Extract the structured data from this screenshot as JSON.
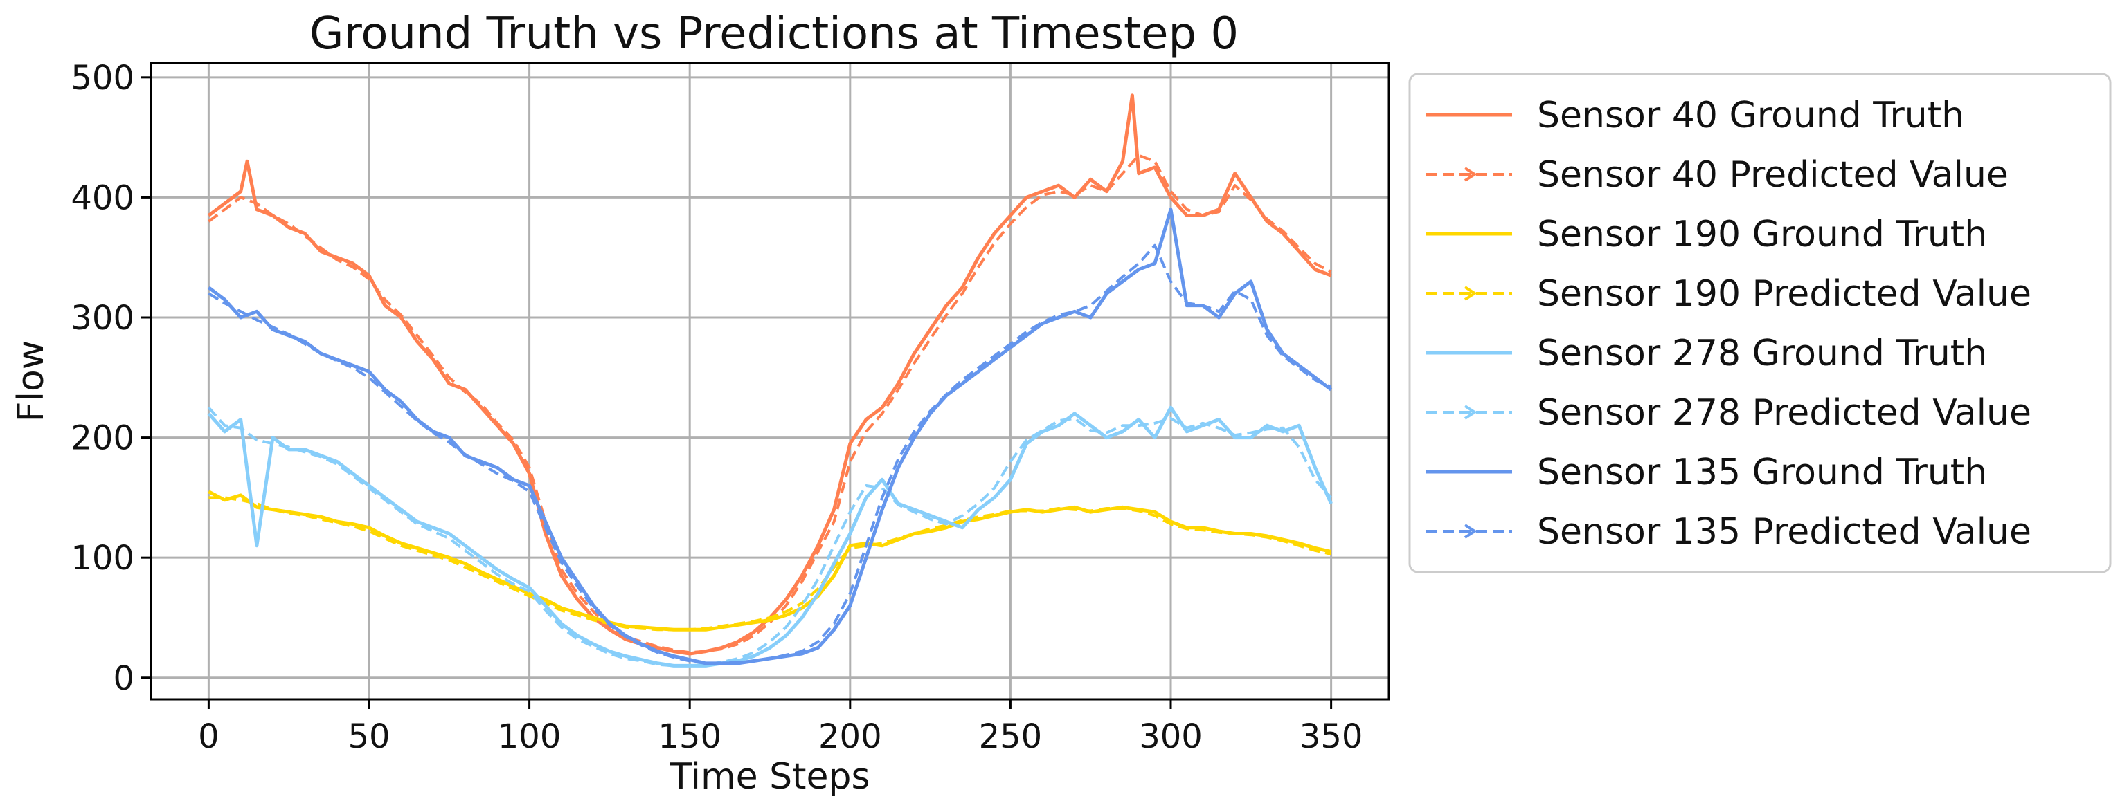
{
  "chart_data": {
    "type": "line",
    "title": "Ground Truth vs Predictions at Timestep 0",
    "xlabel": "Time Steps",
    "ylabel": "Flow",
    "xlim": [
      -18,
      368
    ],
    "ylim": [
      -18,
      512
    ],
    "xticks": [
      0,
      50,
      100,
      150,
      200,
      250,
      300,
      350
    ],
    "yticks": [
      0,
      100,
      200,
      300,
      400,
      500
    ],
    "grid": true,
    "legend_position": "outside-right",
    "series": [
      {
        "name": "Sensor 40 Ground Truth",
        "color": "#FF7F50",
        "style": "solid",
        "x": [
          0,
          5,
          10,
          12,
          15,
          20,
          25,
          30,
          35,
          40,
          45,
          50,
          55,
          60,
          65,
          70,
          75,
          80,
          85,
          90,
          95,
          100,
          105,
          110,
          115,
          120,
          125,
          130,
          135,
          140,
          145,
          150,
          155,
          160,
          165,
          170,
          175,
          180,
          185,
          190,
          195,
          200,
          205,
          210,
          215,
          220,
          225,
          230,
          235,
          240,
          245,
          250,
          255,
          260,
          265,
          270,
          275,
          280,
          285,
          288,
          290,
          295,
          300,
          305,
          310,
          315,
          320,
          325,
          330,
          335,
          340,
          345,
          350
        ],
        "y": [
          385,
          395,
          405,
          430,
          390,
          385,
          375,
          370,
          355,
          350,
          345,
          335,
          310,
          300,
          280,
          265,
          245,
          240,
          225,
          210,
          195,
          170,
          120,
          85,
          65,
          50,
          40,
          32,
          28,
          25,
          22,
          20,
          22,
          25,
          30,
          38,
          50,
          65,
          85,
          110,
          140,
          195,
          215,
          225,
          245,
          270,
          290,
          310,
          325,
          350,
          370,
          385,
          400,
          405,
          410,
          400,
          415,
          405,
          430,
          485,
          420,
          425,
          400,
          385,
          385,
          390,
          420,
          400,
          380,
          370,
          355,
          340,
          335
        ]
      },
      {
        "name": "Sensor 40 Predicted Value",
        "color": "#FF7F50",
        "style": "dashed",
        "x": [
          0,
          5,
          10,
          15,
          20,
          25,
          30,
          35,
          40,
          45,
          50,
          55,
          60,
          65,
          70,
          75,
          80,
          85,
          90,
          95,
          100,
          105,
          110,
          115,
          120,
          125,
          130,
          135,
          140,
          145,
          150,
          155,
          160,
          165,
          170,
          175,
          180,
          185,
          190,
          195,
          200,
          205,
          210,
          215,
          220,
          225,
          230,
          235,
          240,
          245,
          250,
          255,
          260,
          265,
          270,
          275,
          280,
          285,
          290,
          295,
          300,
          305,
          310,
          315,
          320,
          325,
          330,
          335,
          340,
          345,
          350
        ],
        "y": [
          380,
          390,
          400,
          395,
          385,
          378,
          368,
          358,
          348,
          342,
          332,
          315,
          302,
          285,
          268,
          250,
          238,
          228,
          212,
          198,
          175,
          130,
          90,
          70,
          55,
          42,
          34,
          30,
          26,
          23,
          21,
          22,
          24,
          28,
          35,
          46,
          60,
          80,
          105,
          130,
          180,
          205,
          220,
          240,
          262,
          282,
          302,
          320,
          342,
          362,
          378,
          392,
          402,
          405,
          402,
          410,
          405,
          420,
          435,
          430,
          405,
          390,
          385,
          388,
          410,
          398,
          382,
          372,
          358,
          345,
          338
        ]
      },
      {
        "name": "Sensor 190 Ground Truth",
        "color": "#FFD700",
        "style": "solid",
        "x": [
          0,
          5,
          10,
          15,
          20,
          25,
          30,
          35,
          40,
          45,
          50,
          55,
          60,
          65,
          70,
          75,
          80,
          85,
          90,
          95,
          100,
          105,
          110,
          115,
          120,
          125,
          130,
          135,
          140,
          145,
          150,
          155,
          160,
          165,
          170,
          175,
          180,
          185,
          190,
          195,
          200,
          205,
          210,
          215,
          220,
          225,
          230,
          235,
          240,
          245,
          250,
          255,
          260,
          265,
          270,
          275,
          280,
          285,
          290,
          295,
          300,
          305,
          310,
          315,
          320,
          325,
          330,
          335,
          340,
          345,
          350
        ],
        "y": [
          155,
          148,
          152,
          142,
          140,
          138,
          136,
          134,
          130,
          128,
          125,
          118,
          112,
          108,
          104,
          100,
          95,
          88,
          82,
          76,
          70,
          65,
          58,
          54,
          50,
          46,
          43,
          42,
          41,
          40,
          40,
          40,
          42,
          44,
          46,
          48,
          52,
          58,
          68,
          85,
          110,
          112,
          110,
          115,
          120,
          122,
          125,
          130,
          132,
          135,
          138,
          140,
          138,
          140,
          142,
          138,
          140,
          142,
          140,
          138,
          130,
          125,
          125,
          122,
          120,
          120,
          118,
          115,
          112,
          108,
          105
        ]
      },
      {
        "name": "Sensor 190 Predicted Value",
        "color": "#FFD700",
        "style": "dashed",
        "x": [
          0,
          5,
          10,
          15,
          20,
          25,
          30,
          35,
          40,
          45,
          50,
          55,
          60,
          65,
          70,
          75,
          80,
          85,
          90,
          95,
          100,
          105,
          110,
          115,
          120,
          125,
          130,
          135,
          140,
          145,
          150,
          155,
          160,
          165,
          170,
          175,
          180,
          185,
          190,
          195,
          200,
          205,
          210,
          215,
          220,
          225,
          230,
          235,
          240,
          245,
          250,
          255,
          260,
          265,
          270,
          275,
          280,
          285,
          290,
          295,
          300,
          305,
          310,
          315,
          320,
          325,
          330,
          335,
          340,
          345,
          350
        ],
        "y": [
          150,
          150,
          148,
          145,
          140,
          137,
          135,
          132,
          129,
          126,
          122,
          116,
          110,
          106,
          102,
          98,
          92,
          86,
          80,
          74,
          68,
          62,
          56,
          52,
          48,
          45,
          42,
          41,
          40,
          40,
          40,
          41,
          43,
          45,
          47,
          50,
          55,
          62,
          74,
          92,
          108,
          110,
          112,
          116,
          120,
          124,
          127,
          131,
          134,
          136,
          139,
          139,
          139,
          141,
          140,
          139,
          141,
          141,
          139,
          135,
          128,
          124,
          123,
          121,
          120,
          119,
          117,
          114,
          110,
          106,
          103
        ]
      },
      {
        "name": "Sensor 278 Ground Truth",
        "color": "#87CEFA",
        "style": "solid",
        "x": [
          0,
          5,
          10,
          15,
          20,
          25,
          30,
          35,
          40,
          45,
          50,
          55,
          60,
          65,
          70,
          75,
          80,
          85,
          90,
          95,
          100,
          105,
          110,
          115,
          120,
          125,
          130,
          135,
          140,
          145,
          150,
          155,
          160,
          165,
          170,
          175,
          180,
          185,
          190,
          195,
          200,
          205,
          210,
          215,
          220,
          225,
          230,
          235,
          240,
          245,
          250,
          255,
          260,
          265,
          270,
          275,
          280,
          285,
          290,
          295,
          300,
          305,
          310,
          315,
          320,
          325,
          330,
          335,
          340,
          345,
          350
        ],
        "y": [
          220,
          205,
          215,
          110,
          200,
          190,
          190,
          185,
          180,
          170,
          160,
          150,
          140,
          130,
          125,
          120,
          110,
          100,
          90,
          82,
          75,
          60,
          45,
          35,
          28,
          22,
          18,
          15,
          12,
          10,
          10,
          10,
          12,
          14,
          18,
          25,
          35,
          50,
          70,
          95,
          120,
          150,
          165,
          145,
          140,
          135,
          130,
          125,
          140,
          150,
          165,
          195,
          205,
          210,
          220,
          210,
          200,
          205,
          215,
          200,
          225,
          205,
          210,
          215,
          200,
          200,
          210,
          205,
          210,
          175,
          145
        ]
      },
      {
        "name": "Sensor 278 Predicted Value",
        "color": "#87CEFA",
        "style": "dashed",
        "x": [
          0,
          5,
          10,
          15,
          20,
          25,
          30,
          35,
          40,
          45,
          50,
          55,
          60,
          65,
          70,
          75,
          80,
          85,
          90,
          95,
          100,
          105,
          110,
          115,
          120,
          125,
          130,
          135,
          140,
          145,
          150,
          155,
          160,
          165,
          170,
          175,
          180,
          185,
          190,
          195,
          200,
          205,
          210,
          215,
          220,
          225,
          230,
          235,
          240,
          245,
          250,
          255,
          260,
          265,
          270,
          275,
          280,
          285,
          290,
          295,
          300,
          305,
          310,
          315,
          320,
          325,
          330,
          335,
          340,
          345,
          350
        ],
        "y": [
          225,
          210,
          208,
          198,
          195,
          192,
          188,
          184,
          178,
          168,
          158,
          148,
          138,
          128,
          122,
          116,
          106,
          96,
          86,
          78,
          72,
          56,
          42,
          32,
          26,
          20,
          16,
          14,
          11,
          10,
          10,
          11,
          13,
          16,
          21,
          30,
          42,
          60,
          82,
          110,
          138,
          160,
          158,
          144,
          138,
          132,
          128,
          135,
          145,
          158,
          180,
          198,
          206,
          214,
          216,
          206,
          204,
          210,
          210,
          212,
          216,
          208,
          212,
          208,
          202,
          204,
          207,
          208,
          192,
          165,
          150
        ]
      },
      {
        "name": "Sensor 135 Ground Truth",
        "color": "#6495ED",
        "style": "solid",
        "x": [
          0,
          5,
          10,
          15,
          20,
          25,
          30,
          35,
          40,
          45,
          50,
          55,
          60,
          65,
          70,
          75,
          80,
          85,
          90,
          95,
          100,
          105,
          110,
          115,
          120,
          125,
          130,
          135,
          140,
          145,
          150,
          155,
          160,
          165,
          170,
          175,
          180,
          185,
          190,
          195,
          200,
          205,
          210,
          215,
          220,
          225,
          230,
          235,
          240,
          245,
          250,
          255,
          260,
          265,
          270,
          275,
          280,
          285,
          290,
          295,
          300,
          305,
          310,
          315,
          320,
          325,
          330,
          335,
          340,
          345,
          350
        ],
        "y": [
          325,
          315,
          300,
          305,
          290,
          285,
          280,
          270,
          265,
          260,
          255,
          240,
          230,
          215,
          205,
          200,
          185,
          180,
          175,
          165,
          160,
          130,
          100,
          80,
          60,
          45,
          35,
          28,
          22,
          18,
          15,
          12,
          12,
          12,
          14,
          16,
          18,
          20,
          25,
          40,
          60,
          100,
          140,
          175,
          200,
          220,
          235,
          245,
          255,
          265,
          275,
          285,
          295,
          300,
          305,
          300,
          320,
          330,
          340,
          345,
          390,
          310,
          310,
          300,
          320,
          330,
          290,
          270,
          260,
          250,
          240
        ]
      },
      {
        "name": "Sensor 135 Predicted Value",
        "color": "#6495ED",
        "style": "dashed",
        "x": [
          0,
          5,
          10,
          15,
          20,
          25,
          30,
          35,
          40,
          45,
          50,
          55,
          60,
          65,
          70,
          75,
          80,
          85,
          90,
          95,
          100,
          105,
          110,
          115,
          120,
          125,
          130,
          135,
          140,
          145,
          150,
          155,
          160,
          165,
          170,
          175,
          180,
          185,
          190,
          195,
          200,
          205,
          210,
          215,
          220,
          225,
          230,
          235,
          240,
          245,
          250,
          255,
          260,
          265,
          270,
          275,
          280,
          285,
          290,
          295,
          300,
          305,
          310,
          315,
          320,
          325,
          330,
          335,
          340,
          345,
          350
        ],
        "y": [
          320,
          312,
          305,
          298,
          292,
          286,
          278,
          270,
          264,
          258,
          250,
          238,
          226,
          214,
          204,
          196,
          186,
          178,
          170,
          164,
          155,
          125,
          96,
          76,
          58,
          44,
          34,
          27,
          21,
          17,
          14,
          12,
          12,
          13,
          14,
          16,
          19,
          22,
          30,
          45,
          70,
          110,
          150,
          182,
          205,
          222,
          236,
          248,
          258,
          268,
          278,
          288,
          296,
          302,
          305,
          310,
          322,
          334,
          345,
          360,
          330,
          312,
          310,
          305,
          322,
          315,
          285,
          268,
          258,
          248,
          242
        ]
      }
    ]
  }
}
